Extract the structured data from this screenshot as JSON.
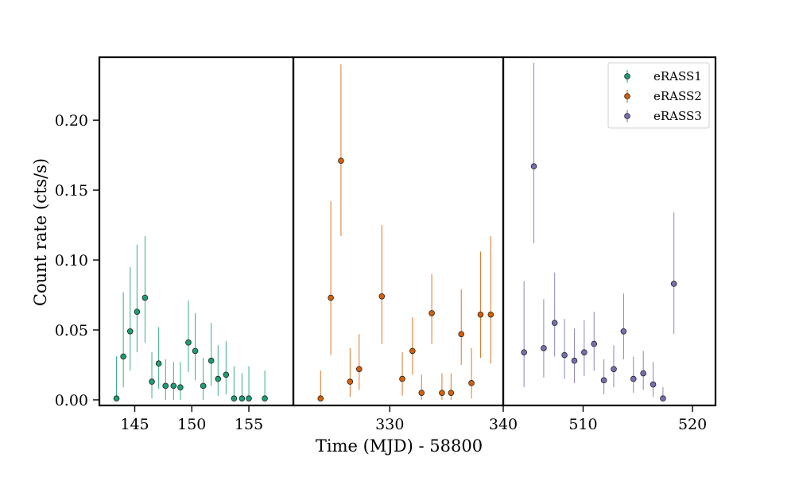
{
  "chart_data": {
    "type": "scatter",
    "xlabel": "Time (MJD) - 58800",
    "ylabel": "Count rate (cts/s)",
    "ylim": [
      -0.004,
      0.245
    ],
    "yticks": [
      0.0,
      0.05,
      0.1,
      0.15,
      0.2
    ],
    "ytick_labels": [
      "0.00",
      "0.05",
      "0.10",
      "0.15",
      "0.20"
    ],
    "legend_position": "top-right",
    "error_bars": true,
    "panels": [
      {
        "xlim": [
          141.9,
          158.9
        ],
        "xticks": [
          145,
          150,
          155
        ],
        "xtick_labels": [
          "145",
          "150",
          "155"
        ],
        "series": [
          {
            "name": "eRASS1",
            "color": "#1b9e77",
            "points": [
              {
                "x": 143.4,
                "y": 0.001,
                "lo": 0.0,
                "hi": 0.031
              },
              {
                "x": 144.0,
                "y": 0.031,
                "lo": 0.009,
                "hi": 0.077
              },
              {
                "x": 144.6,
                "y": 0.049,
                "lo": 0.021,
                "hi": 0.095
              },
              {
                "x": 145.2,
                "y": 0.063,
                "lo": 0.034,
                "hi": 0.111
              },
              {
                "x": 145.9,
                "y": 0.073,
                "lo": 0.041,
                "hi": 0.117
              },
              {
                "x": 146.5,
                "y": 0.013,
                "lo": 0.001,
                "hi": 0.034
              },
              {
                "x": 147.1,
                "y": 0.026,
                "lo": 0.008,
                "hi": 0.052
              },
              {
                "x": 147.7,
                "y": 0.01,
                "lo": 0.0,
                "hi": 0.029
              },
              {
                "x": 148.4,
                "y": 0.01,
                "lo": 0.0,
                "hi": 0.027
              },
              {
                "x": 149.0,
                "y": 0.009,
                "lo": 0.0,
                "hi": 0.027
              },
              {
                "x": 149.7,
                "y": 0.041,
                "lo": 0.02,
                "hi": 0.071
              },
              {
                "x": 150.3,
                "y": 0.035,
                "lo": 0.014,
                "hi": 0.062
              },
              {
                "x": 151.0,
                "y": 0.01,
                "lo": 0.0,
                "hi": 0.03
              },
              {
                "x": 151.7,
                "y": 0.028,
                "lo": 0.01,
                "hi": 0.055
              },
              {
                "x": 152.3,
                "y": 0.015,
                "lo": 0.003,
                "hi": 0.039
              },
              {
                "x": 153.0,
                "y": 0.018,
                "lo": 0.004,
                "hi": 0.042
              },
              {
                "x": 153.7,
                "y": 0.001,
                "lo": 0.0,
                "hi": 0.024
              },
              {
                "x": 154.4,
                "y": 0.001,
                "lo": 0.0,
                "hi": 0.019
              },
              {
                "x": 155.0,
                "y": 0.001,
                "lo": 0.0,
                "hi": 0.024
              },
              {
                "x": 156.4,
                "y": 0.001,
                "lo": 0.0,
                "hi": 0.021
              }
            ]
          }
        ]
      },
      {
        "xlim": [
          321.5,
          340.0
        ],
        "xticks": [
          330,
          340
        ],
        "xtick_labels": [
          "330",
          "340"
        ],
        "series": [
          {
            "name": "eRASS2",
            "color": "#d95f02",
            "points": [
              {
                "x": 323.9,
                "y": 0.001,
                "lo": 0.0,
                "hi": 0.021
              },
              {
                "x": 324.8,
                "y": 0.073,
                "lo": 0.032,
                "hi": 0.142
              },
              {
                "x": 325.7,
                "y": 0.171,
                "lo": 0.117,
                "hi": 0.24
              },
              {
                "x": 326.5,
                "y": 0.013,
                "lo": 0.002,
                "hi": 0.037
              },
              {
                "x": 327.3,
                "y": 0.022,
                "lo": 0.007,
                "hi": 0.047
              },
              {
                "x": 329.3,
                "y": 0.074,
                "lo": 0.04,
                "hi": 0.125
              },
              {
                "x": 331.1,
                "y": 0.015,
                "lo": 0.003,
                "hi": 0.034
              },
              {
                "x": 332.0,
                "y": 0.035,
                "lo": 0.018,
                "hi": 0.059
              },
              {
                "x": 332.8,
                "y": 0.005,
                "lo": 0.0,
                "hi": 0.018
              },
              {
                "x": 333.7,
                "y": 0.062,
                "lo": 0.04,
                "hi": 0.09
              },
              {
                "x": 334.6,
                "y": 0.005,
                "lo": 0.0,
                "hi": 0.019
              },
              {
                "x": 335.4,
                "y": 0.005,
                "lo": 0.0,
                "hi": 0.019
              },
              {
                "x": 336.3,
                "y": 0.047,
                "lo": 0.025,
                "hi": 0.079
              },
              {
                "x": 337.2,
                "y": 0.012,
                "lo": 0.001,
                "hi": 0.037
              },
              {
                "x": 338.0,
                "y": 0.061,
                "lo": 0.03,
                "hi": 0.106
              },
              {
                "x": 338.9,
                "y": 0.061,
                "lo": 0.026,
                "hi": 0.117
              }
            ]
          }
        ]
      },
      {
        "xlim": [
          502.7,
          522.1
        ],
        "xticks": [
          510,
          520
        ],
        "xtick_labels": [
          "510",
          "520"
        ],
        "series": [
          {
            "name": "eRASS3",
            "color": "#7570b3",
            "points": [
              {
                "x": 504.6,
                "y": 0.034,
                "lo": 0.009,
                "hi": 0.085
              },
              {
                "x": 505.5,
                "y": 0.167,
                "lo": 0.112,
                "hi": 0.241
              },
              {
                "x": 506.4,
                "y": 0.037,
                "lo": 0.016,
                "hi": 0.072
              },
              {
                "x": 507.4,
                "y": 0.055,
                "lo": 0.031,
                "hi": 0.091
              },
              {
                "x": 508.3,
                "y": 0.032,
                "lo": 0.015,
                "hi": 0.058
              },
              {
                "x": 509.2,
                "y": 0.028,
                "lo": 0.012,
                "hi": 0.051
              },
              {
                "x": 510.1,
                "y": 0.034,
                "lo": 0.017,
                "hi": 0.057
              },
              {
                "x": 511.0,
                "y": 0.04,
                "lo": 0.021,
                "hi": 0.063
              },
              {
                "x": 511.9,
                "y": 0.014,
                "lo": 0.004,
                "hi": 0.029
              },
              {
                "x": 512.8,
                "y": 0.022,
                "lo": 0.009,
                "hi": 0.039
              },
              {
                "x": 513.7,
                "y": 0.049,
                "lo": 0.029,
                "hi": 0.076
              },
              {
                "x": 514.6,
                "y": 0.015,
                "lo": 0.005,
                "hi": 0.031
              },
              {
                "x": 515.5,
                "y": 0.019,
                "lo": 0.007,
                "hi": 0.035
              },
              {
                "x": 516.4,
                "y": 0.011,
                "lo": 0.002,
                "hi": 0.027
              },
              {
                "x": 517.3,
                "y": 0.001,
                "lo": 0.0,
                "hi": 0.009
              },
              {
                "x": 518.3,
                "y": 0.083,
                "lo": 0.047,
                "hi": 0.134
              }
            ]
          }
        ]
      }
    ]
  }
}
